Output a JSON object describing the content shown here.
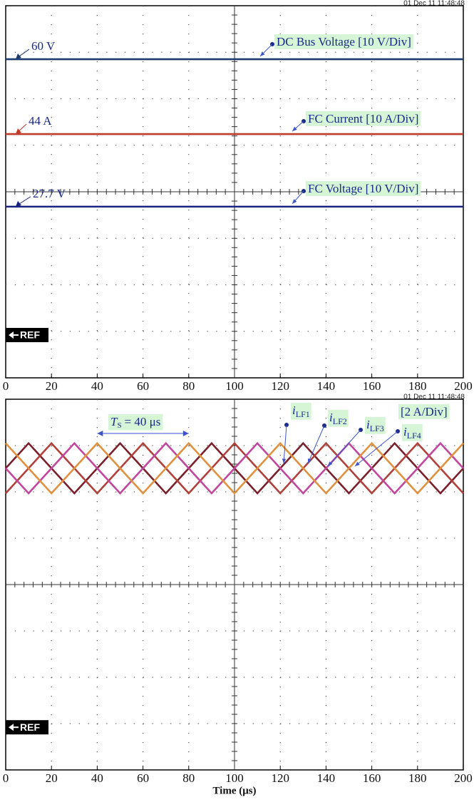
{
  "chart_data": [
    {
      "type": "line",
      "timestamp": "01 Dec 11  11:48:48",
      "ref_label": "REF",
      "xlim": [
        0,
        200
      ],
      "xticks": [
        0,
        20,
        40,
        60,
        80,
        100,
        120,
        140,
        160,
        180,
        200
      ],
      "ylim": [
        -4,
        4
      ],
      "x": [
        0,
        200
      ],
      "level_labels": [
        "60 V",
        "44 A",
        "27.7 V"
      ],
      "series": [
        {
          "name": "DC Bus Voltage [10 V/Div]",
          "color": "#1c3a6e",
          "values": [
            2.85,
            2.85
          ]
        },
        {
          "name": "FC Current [10 A/Div]",
          "color": "#c0392b",
          "values": [
            1.24,
            1.24
          ]
        },
        {
          "name": "FC Voltage [10 V/Div]",
          "color": "#1a237e",
          "values": [
            -0.32,
            -0.32
          ]
        }
      ]
    },
    {
      "type": "line",
      "timestamp": "01 Dec 11  11:48:48",
      "ref_label": "REF",
      "xlabel": "Time (μs)",
      "scale_label": "[2 A/Div]",
      "period_label": {
        "symbol": "T",
        "subscript": "S",
        "text": "= 40 μs"
      },
      "xlim": [
        0,
        200
      ],
      "xticks": [
        0,
        20,
        40,
        60,
        80,
        100,
        120,
        140,
        160,
        180,
        200
      ],
      "ylim": [
        -4,
        4
      ],
      "x": [
        0,
        10,
        20,
        30,
        40,
        50,
        60,
        70,
        80,
        90,
        100,
        110,
        120,
        130,
        140,
        150,
        160,
        170,
        180,
        190,
        200
      ],
      "series": [
        {
          "name": "iLF1",
          "color": "#7a1f2b",
          "values": [
            2.51,
            3.05,
            2.51,
            1.97,
            2.51,
            3.05,
            2.51,
            1.97,
            2.51,
            3.05,
            2.51,
            1.97,
            2.51,
            3.05,
            2.51,
            1.97,
            2.51,
            3.05,
            2.51,
            1.97,
            2.51
          ]
        },
        {
          "name": "iLF2",
          "color": "#b2403a",
          "values": [
            1.97,
            2.51,
            3.05,
            2.51,
            1.97,
            2.51,
            3.05,
            2.51,
            1.97,
            2.51,
            3.05,
            2.51,
            1.97,
            2.51,
            3.05,
            2.51,
            1.97,
            2.51,
            3.05,
            2.51,
            1.97
          ]
        },
        {
          "name": "iLF3",
          "color": "#c2459e",
          "values": [
            2.51,
            1.97,
            2.51,
            3.05,
            2.51,
            1.97,
            2.51,
            3.05,
            2.51,
            1.97,
            2.51,
            3.05,
            2.51,
            1.97,
            2.51,
            3.05,
            2.51,
            1.97,
            2.51,
            3.05,
            2.51
          ]
        },
        {
          "name": "iLF4",
          "color": "#e0913f",
          "values": [
            3.05,
            2.51,
            1.97,
            2.51,
            3.05,
            2.51,
            1.97,
            2.51,
            3.05,
            2.51,
            1.97,
            2.51,
            3.05,
            2.51,
            1.97,
            2.51,
            3.05,
            2.51,
            1.97,
            2.51,
            3.05
          ]
        }
      ]
    }
  ]
}
